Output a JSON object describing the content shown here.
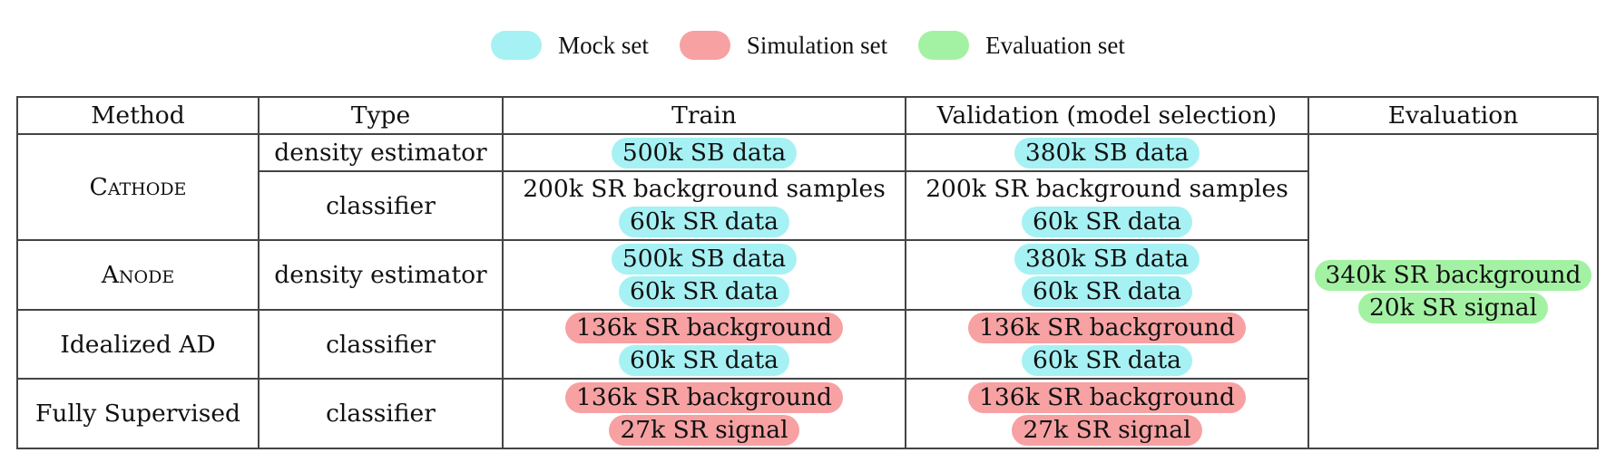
{
  "legend": {
    "mock": {
      "label": "Mock set",
      "color": "#a6f1f4"
    },
    "simulation": {
      "label": "Simulation set",
      "color": "#f7a1a3"
    },
    "evaluation": {
      "label": "Evaluation set",
      "color": "#a3f2a3"
    }
  },
  "table": {
    "headers": [
      "Method",
      "Type",
      "Train",
      "Validation (model selection)",
      "Evaluation"
    ],
    "methods": {
      "cathode": "Cathode",
      "anode": "Anode",
      "idealized": "Idealized AD",
      "supervised": "Fully Supervised"
    },
    "types": {
      "cathode_density": "density estimator",
      "cathode_classifier": "classifier",
      "anode_density": "density estimator",
      "idealized_classifier": "classifier",
      "supervised_classifier": "classifier"
    },
    "train": {
      "cathode_density": [
        "500k SB data"
      ],
      "cathode_classifier": [
        "200k SR background samples",
        "60k SR data"
      ],
      "anode": [
        "500k SB data",
        "60k SR data"
      ],
      "idealized": [
        "136k SR background",
        "60k SR data"
      ],
      "supervised": [
        "136k SR background",
        "27k SR signal"
      ]
    },
    "validation": {
      "cathode_density": [
        "380k SB data"
      ],
      "cathode_classifier": [
        "200k SR background samples",
        "60k SR data"
      ],
      "anode": [
        "380k SB data",
        "60k SR data"
      ],
      "idealized": [
        "136k SR background",
        "60k SR data"
      ],
      "supervised": [
        "136k SR background",
        "27k SR signal"
      ]
    },
    "evaluation": [
      "340k SR background",
      "20k SR signal"
    ]
  }
}
